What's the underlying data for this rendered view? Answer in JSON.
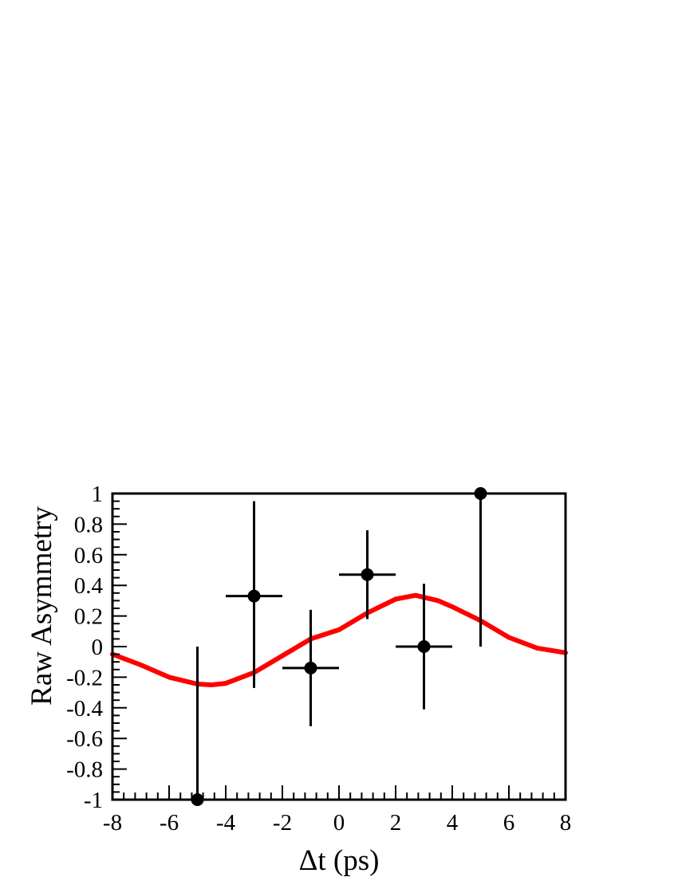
{
  "chart_data": {
    "type": "scatter",
    "xlabel": "Δt (ps)",
    "ylabel": "Raw Asymmetry",
    "xlim": [
      -8,
      8
    ],
    "ylim": [
      -1,
      1
    ],
    "x_ticks": [
      "-8",
      "-6",
      "-4",
      "-2",
      "0",
      "2",
      "4",
      "6",
      "8"
    ],
    "y_ticks": [
      "-1",
      "-0.8",
      "-0.6",
      "-0.4",
      "-0.2",
      "0",
      "0.2",
      "0.4",
      "0.6",
      "0.8",
      "1"
    ],
    "grid": false,
    "colors": {
      "points": "#000000",
      "fit": "#ff0000",
      "frame": "#000000"
    },
    "series": [
      {
        "type": "points_with_errors",
        "points": [
          {
            "x": -5,
            "y": -1.0,
            "xerr": 0,
            "yerr_up": 1.0,
            "yerr_down": 0
          },
          {
            "x": -3,
            "y": 0.33,
            "xerr": 1,
            "yerr_up": 0.62,
            "yerr_down": 0.6
          },
          {
            "x": -1,
            "y": -0.14,
            "xerr": 1,
            "yerr_up": 0.38,
            "yerr_down": 0.38
          },
          {
            "x": 1,
            "y": 0.47,
            "xerr": 1,
            "yerr_up": 0.29,
            "yerr_down": 0.29
          },
          {
            "x": 3,
            "y": 0.0,
            "xerr": 1,
            "yerr_up": 0.41,
            "yerr_down": 0.41
          },
          {
            "x": 5,
            "y": 1.0,
            "xerr": 1,
            "yerr_up": 0,
            "yerr_down": 1.0
          }
        ]
      },
      {
        "type": "line",
        "points": [
          [
            -8,
            -0.05
          ],
          [
            -7,
            -0.12
          ],
          [
            -6,
            -0.2
          ],
          [
            -5,
            -0.245
          ],
          [
            -4.5,
            -0.25
          ],
          [
            -4,
            -0.24
          ],
          [
            -3,
            -0.17
          ],
          [
            -2,
            -0.06
          ],
          [
            -1,
            0.05
          ],
          [
            0,
            0.11
          ],
          [
            1,
            0.22
          ],
          [
            2,
            0.31
          ],
          [
            2.7,
            0.335
          ],
          [
            3.5,
            0.3
          ],
          [
            4,
            0.26
          ],
          [
            5,
            0.17
          ],
          [
            6,
            0.06
          ],
          [
            7,
            -0.01
          ],
          [
            8,
            -0.04
          ]
        ]
      }
    ]
  }
}
